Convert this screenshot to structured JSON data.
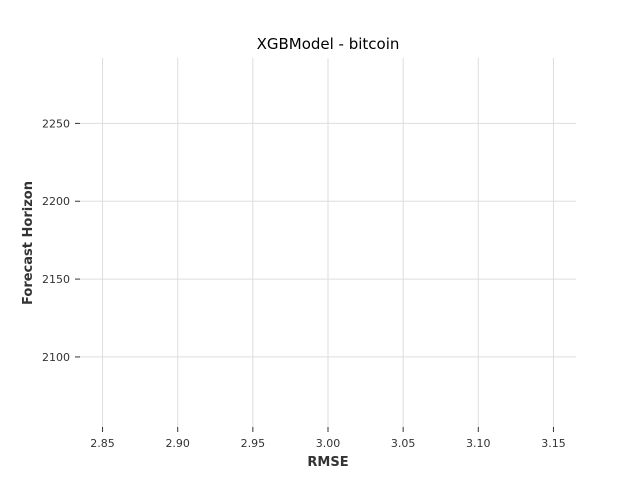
{
  "chart_data": {
    "type": "scatter",
    "title": "XGBModel - bitcoin",
    "xlabel": "RMSE",
    "ylabel": "Forecast Horizon",
    "xlim": [
      2.835,
      3.165
    ],
    "ylim": [
      2055,
      2292
    ],
    "xticks": [
      2.85,
      2.9,
      2.95,
      3.0,
      3.05,
      3.1,
      3.15
    ],
    "xtick_labels": [
      "2.85",
      "2.90",
      "2.95",
      "3.00",
      "3.05",
      "3.10",
      "3.15"
    ],
    "yticks": [
      2100,
      2150,
      2200,
      2250
    ],
    "ytick_labels": [
      "2100",
      "2150",
      "2200",
      "2250"
    ],
    "grid": true,
    "x": [],
    "y": []
  }
}
